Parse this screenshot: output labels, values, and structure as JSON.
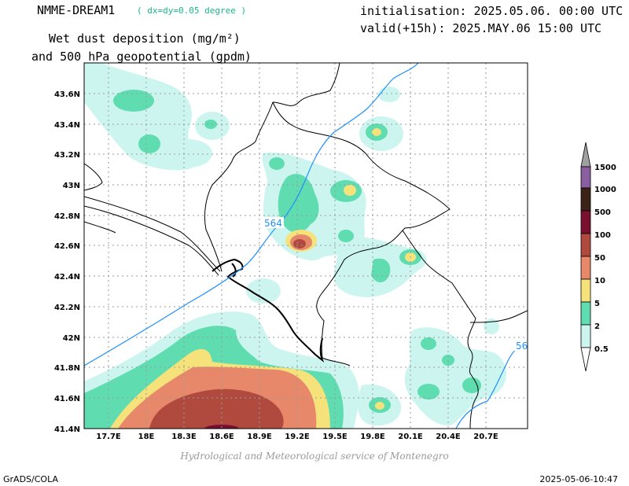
{
  "header": {
    "model_name": "NMME-DREAM1",
    "resolution": "( dx=dy=0.05 degree )",
    "initialisation": "initialisation: 2025.05.06. 00:00 UTC",
    "valid": "valid(+15h): 2025.MAY.06 15:00 UTC",
    "field_title_line1": "Wet dust deposition (mg/m²)",
    "field_title_line2": "and 500 hPa geopotential (gpdm)"
  },
  "map": {
    "lon_labels": [
      "17.7E",
      "18E",
      "18.3E",
      "18.6E",
      "18.9E",
      "19.2E",
      "19.5E",
      "19.8E",
      "20.1E",
      "20.4E",
      "20.7E"
    ],
    "lat_labels": [
      "43.6N",
      "43.4N",
      "43.2N",
      "43N",
      "42.8N",
      "42.6N",
      "42.4N",
      "42.2N",
      "42N",
      "41.8N",
      "41.6N",
      "41.4N"
    ],
    "contour_labels": [
      "564",
      "56"
    ],
    "contour_color": "#1e90ff",
    "grid_lines": "dotted"
  },
  "legend": {
    "levels": [
      "1500",
      "1000",
      "500",
      "100",
      "50",
      "10",
      "5",
      "2",
      "0.5"
    ],
    "colors": [
      "#a0a0a0",
      "#8a5fa0",
      "#3b2318",
      "#7a1030",
      "#b04a3e",
      "#e8886a",
      "#f6e27a",
      "#5fdcb0",
      "#cdf5ef"
    ]
  },
  "footer": {
    "credit": "Hydrological and Meteorological service of Montenegro",
    "software": "GrADS/COLA",
    "timestamp": "2025-05-06-10:47"
  }
}
